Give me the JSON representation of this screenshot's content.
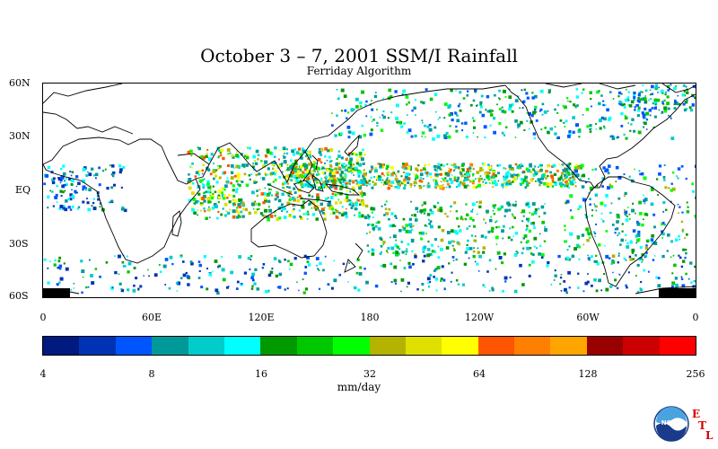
{
  "title": "October 3 – 7, 2001 SSM/I Rainfall",
  "subtitle": "Ferriday Algorithm",
  "map": {
    "lat_labels": [
      "60N",
      "30N",
      "EQ",
      "30S",
      "60S"
    ],
    "lon_labels": [
      "0",
      "60E",
      "120E",
      "180",
      "120W",
      "60W",
      "0"
    ]
  },
  "colorbar": {
    "colors": [
      "#001a80",
      "#0033b3",
      "#0055ff",
      "#009999",
      "#00cccc",
      "#00ffff",
      "#009900",
      "#00c800",
      "#00ff00",
      "#b3b300",
      "#e0e000",
      "#ffff00",
      "#ff5500",
      "#ff7f00",
      "#ffa500",
      "#990000",
      "#cc0000",
      "#ff0000"
    ],
    "tick_labels": [
      "4",
      "8",
      "16",
      "32",
      "64",
      "128",
      "256"
    ],
    "unit": "mm/day"
  },
  "logo": {
    "org": "NOAA",
    "letters": [
      "E",
      "T",
      "L"
    ]
  }
}
